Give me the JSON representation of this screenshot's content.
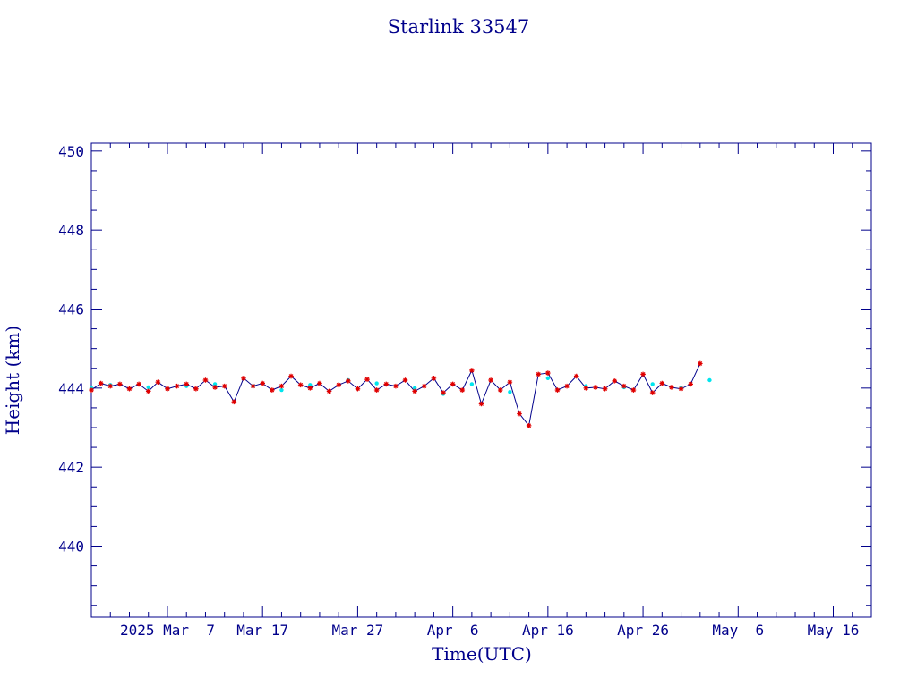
{
  "chart_data": {
    "type": "line",
    "title": "Starlink 33547",
    "xlabel": "Time(UTC)",
    "ylabel": "Height (km)",
    "ylim": [
      438.2,
      450.2
    ],
    "xlim": [
      "2025-02-27",
      "2025-05-20"
    ],
    "yticks": [
      440,
      442,
      444,
      446,
      448,
      450
    ],
    "xticks": [
      {
        "date": "2025-03-07",
        "label": "2025 Mar  7"
      },
      {
        "date": "2025-03-17",
        "label": "Mar 17"
      },
      {
        "date": "2025-03-27",
        "label": "Mar 27"
      },
      {
        "date": "2025-04-06",
        "label": "Apr  6"
      },
      {
        "date": "2025-04-16",
        "label": "Apr 16"
      },
      {
        "date": "2025-04-26",
        "label": "Apr 26"
      },
      {
        "date": "2025-05-06",
        "label": "May  6"
      },
      {
        "date": "2025-05-16",
        "label": "May 16"
      }
    ],
    "grid": false,
    "colors": {
      "axis": "#00008b",
      "line": "#00008b",
      "marker_red": "#e00000",
      "marker_cyan": "#00e5ee"
    },
    "series": [
      {
        "values_x": [
          "2025-02-27",
          "2025-02-28",
          "2025-03-01",
          "2025-03-02",
          "2025-03-03",
          "2025-03-04",
          "2025-03-05",
          "2025-03-06",
          "2025-03-07",
          "2025-03-08",
          "2025-03-09",
          "2025-03-10",
          "2025-03-11",
          "2025-03-12",
          "2025-03-13",
          "2025-03-14",
          "2025-03-15",
          "2025-03-16",
          "2025-03-17",
          "2025-03-18",
          "2025-03-19",
          "2025-03-20",
          "2025-03-21",
          "2025-03-22",
          "2025-03-23",
          "2025-03-24",
          "2025-03-25",
          "2025-03-26",
          "2025-03-27",
          "2025-03-28",
          "2025-03-29",
          "2025-03-30",
          "2025-03-31",
          "2025-04-01",
          "2025-04-02",
          "2025-04-03",
          "2025-04-04",
          "2025-04-05",
          "2025-04-06",
          "2025-04-07",
          "2025-04-08",
          "2025-04-09",
          "2025-04-10",
          "2025-04-11",
          "2025-04-12",
          "2025-04-13",
          "2025-04-14",
          "2025-04-15",
          "2025-04-16",
          "2025-04-17",
          "2025-04-18",
          "2025-04-19",
          "2025-04-20",
          "2025-04-21",
          "2025-04-22",
          "2025-04-23",
          "2025-04-24",
          "2025-04-25",
          "2025-04-26",
          "2025-04-27",
          "2025-04-28",
          "2025-04-29",
          "2025-04-30",
          "2025-05-01",
          "2025-05-02"
        ],
        "values_y": [
          443.95,
          444.12,
          444.05,
          444.1,
          443.98,
          444.1,
          443.92,
          444.15,
          443.98,
          444.05,
          444.1,
          443.98,
          444.2,
          444.02,
          444.05,
          443.65,
          444.25,
          444.05,
          444.12,
          443.95,
          444.05,
          444.3,
          444.08,
          444.0,
          444.12,
          443.92,
          444.08,
          444.18,
          443.98,
          444.22,
          443.95,
          444.1,
          444.05,
          444.2,
          443.92,
          444.05,
          444.25,
          443.88,
          444.1,
          443.95,
          444.45,
          443.6,
          444.2,
          443.95,
          444.15,
          443.35,
          443.05,
          444.35,
          444.38,
          443.95,
          444.05,
          444.3,
          444.0,
          444.02,
          443.98,
          444.18,
          444.05,
          443.95,
          444.35,
          443.88,
          444.12,
          444.02,
          443.98,
          444.1,
          444.62
        ],
        "marker_color": "red"
      },
      {
        "values_x": [
          "2025-02-27",
          "2025-03-01",
          "2025-03-05",
          "2025-03-09",
          "2025-03-12",
          "2025-03-16",
          "2025-03-19",
          "2025-03-22",
          "2025-03-26",
          "2025-03-29",
          "2025-04-02",
          "2025-04-05",
          "2025-04-08",
          "2025-04-12",
          "2025-04-16",
          "2025-04-20",
          "2025-04-24",
          "2025-04-27",
          "2025-04-30",
          "2025-05-03"
        ],
        "values_y": [
          444.0,
          444.08,
          444.02,
          444.05,
          444.1,
          444.05,
          443.95,
          444.08,
          444.2,
          444.12,
          444.0,
          443.85,
          444.1,
          443.9,
          444.25,
          444.05,
          444.02,
          444.1,
          444.0,
          444.2
        ],
        "marker_color": "cyan"
      }
    ]
  }
}
